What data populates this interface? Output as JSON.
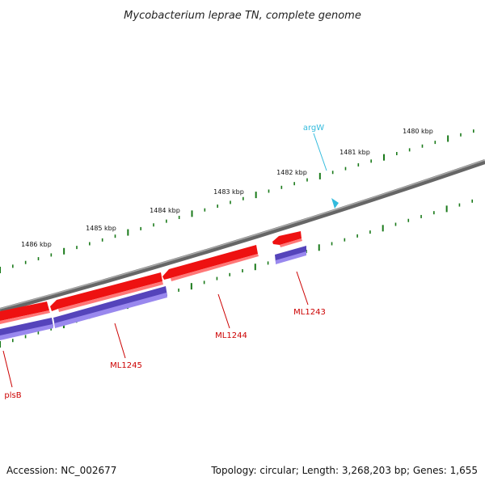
{
  "title": "Mycobacterium leprae TN, complete genome",
  "footer": {
    "accession": "Accession: NC_002677",
    "summary": "Topology: circular; Length: 3,268,203 bp; Genes: 1,655"
  },
  "scale_labels": [
    "1480 kbp",
    "1481 kbp",
    "1482 kbp",
    "1483 kbp",
    "1484 kbp",
    "1485 kbp",
    "1486 kbp"
  ],
  "genes": [
    {
      "name": "argW",
      "type": "tRNA"
    },
    {
      "name": "ML1243",
      "type": "CDS"
    },
    {
      "name": "ML1244",
      "type": "CDS"
    },
    {
      "name": "ML1245",
      "type": "CDS"
    },
    {
      "name": "plsB",
      "type": "CDS"
    }
  ],
  "colors": {
    "backbone": "#888888",
    "cds_reverse": "#ee1111",
    "cds_protein": "#6655cc",
    "trna": "#33bbdd",
    "ticks": "#1a7a1a",
    "gene_label": "#cc0000"
  }
}
